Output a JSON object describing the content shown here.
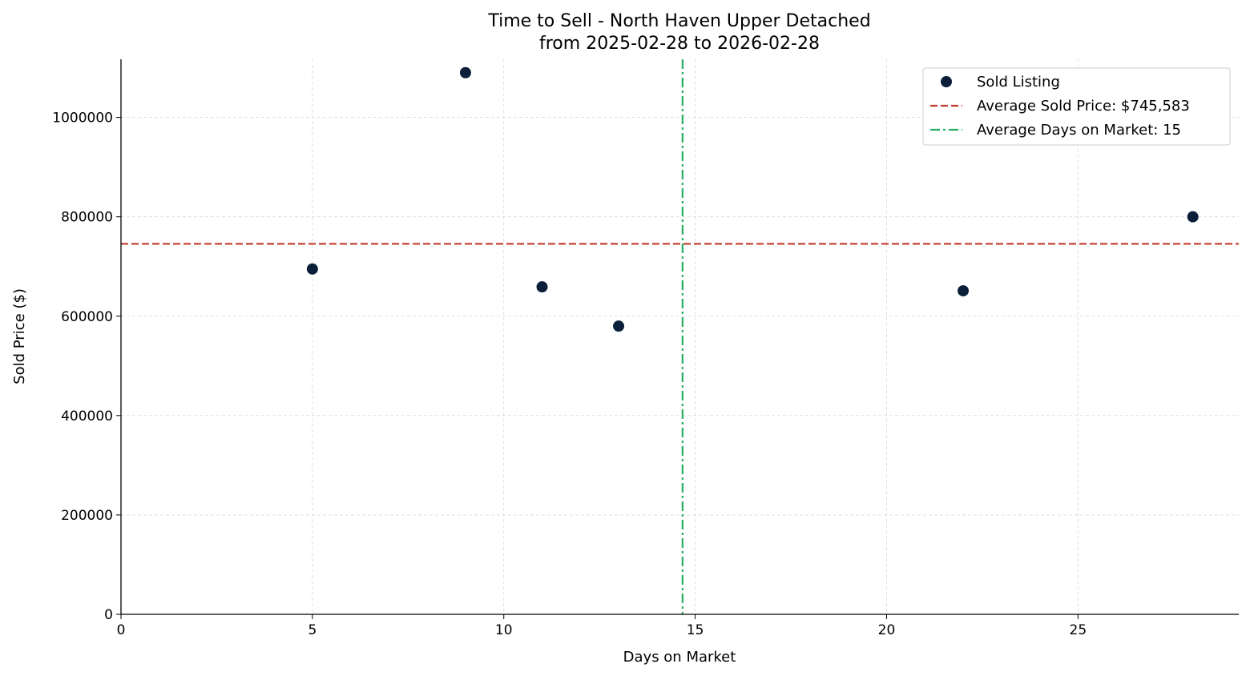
{
  "chart_data": {
    "type": "scatter",
    "title": "Time to Sell - North Haven Upper Detached",
    "subtitle": "from 2025-02-28 to 2026-02-28",
    "xlabel": "Days on Market",
    "ylabel": "Sold Price ($)",
    "xlim": [
      0,
      29.2
    ],
    "ylim": [
      0,
      1117000
    ],
    "xticks": [
      0,
      5,
      10,
      15,
      20,
      25
    ],
    "yticks": [
      0,
      200000,
      400000,
      600000,
      800000,
      1000000
    ],
    "grid": true,
    "legend_placement": "top-right",
    "points": [
      {
        "x": 5,
        "y": 695000
      },
      {
        "x": 9,
        "y": 1090000
      },
      {
        "x": 11,
        "y": 659000
      },
      {
        "x": 13,
        "y": 580000
      },
      {
        "x": 22,
        "y": 651000
      },
      {
        "x": 28,
        "y": 800000
      }
    ],
    "avg_price": 745583,
    "avg_days": 14.67,
    "legend": [
      {
        "label": "Sold Listing",
        "kind": "marker"
      },
      {
        "label": "Average Sold Price: $745,583",
        "kind": "dashed"
      },
      {
        "label": "Average Days on Market: 15",
        "kind": "dashdot"
      }
    ],
    "colors": {
      "points": "#0b1f3a",
      "avg_price": "#c0392b",
      "avg_days": "#27ae60",
      "grid": "#d9d9d9"
    }
  }
}
